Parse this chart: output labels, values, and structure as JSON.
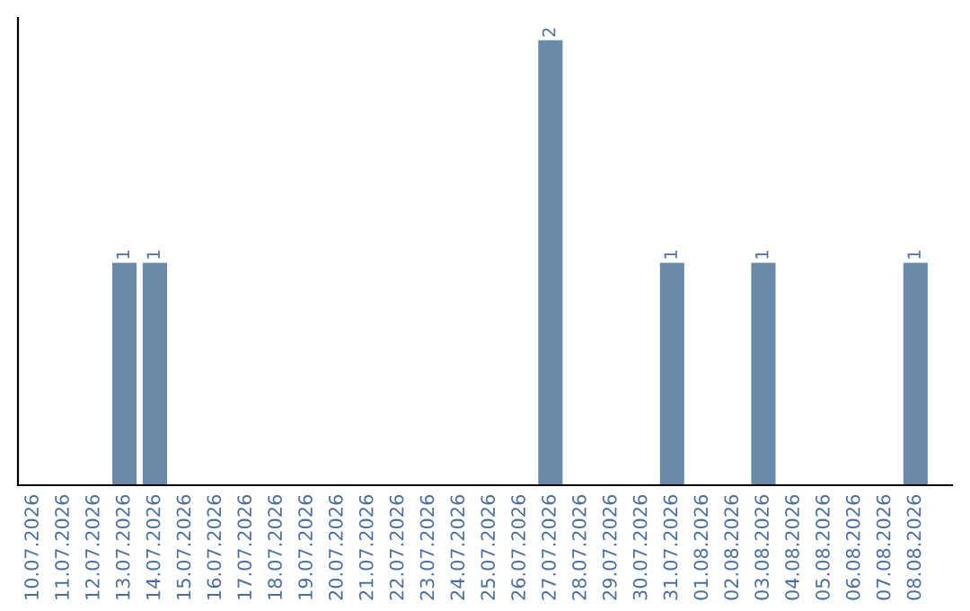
{
  "chart_data": {
    "type": "bar",
    "categories": [
      "10.07.2026",
      "11.07.2026",
      "12.07.2026",
      "13.07.2026",
      "14.07.2026",
      "15.07.2026",
      "16.07.2026",
      "17.07.2026",
      "18.07.2026",
      "19.07.2026",
      "20.07.2026",
      "21.07.2026",
      "22.07.2026",
      "23.07.2026",
      "24.07.2026",
      "25.07.2026",
      "26.07.2026",
      "27.07.2026",
      "28.07.2026",
      "29.07.2026",
      "30.07.2026",
      "31.07.2026",
      "01.08.2026",
      "02.08.2026",
      "03.08.2026",
      "04.08.2026",
      "05.08.2026",
      "06.08.2026",
      "07.08.2026",
      "08.08.2026"
    ],
    "values": [
      0,
      0,
      0,
      1,
      1,
      0,
      0,
      0,
      0,
      0,
      0,
      0,
      0,
      0,
      0,
      0,
      0,
      2,
      0,
      0,
      0,
      1,
      0,
      0,
      1,
      0,
      0,
      0,
      0,
      1
    ],
    "value_labels": [
      null,
      null,
      null,
      "1",
      "1",
      null,
      null,
      null,
      null,
      null,
      null,
      null,
      null,
      null,
      null,
      null,
      null,
      "2",
      null,
      null,
      null,
      "1",
      null,
      null,
      "1",
      null,
      null,
      null,
      null,
      "1"
    ],
    "color": "#6a8aaa",
    "tick_labels": "x",
    "grid": false,
    "legend": false
  }
}
